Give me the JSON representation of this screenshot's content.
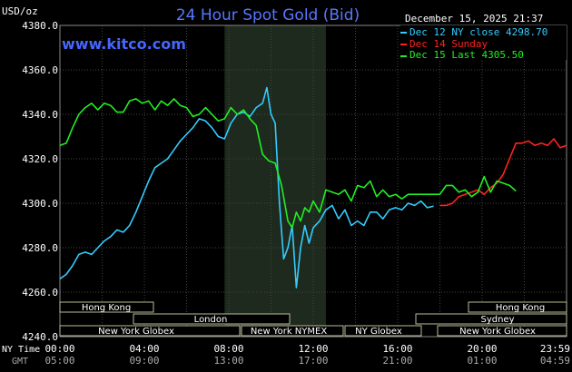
{
  "header": {
    "title": "24 Hour Spot Gold (Bid)",
    "currency_label": "USD/oz",
    "datetime": "December 15, 2025 21:37",
    "watermark": "www.kitco.com"
  },
  "legend": [
    {
      "label": "Dec 12 NY close 4298.70",
      "color": "#33ccff"
    },
    {
      "label": "Dec 14 Sunday",
      "color": "#ff2222"
    },
    {
      "label": "Dec 15 Last 4305.50",
      "color": "#22ee22"
    }
  ],
  "markets": [
    {
      "name": "Hong Kong",
      "row": 0
    },
    {
      "name": "Hong Kong",
      "row": 0
    },
    {
      "name": "London",
      "row": 1
    },
    {
      "name": "Sydney",
      "row": 1
    },
    {
      "name": "New York Globex",
      "row": 2
    },
    {
      "name": "New York NYMEX",
      "row": 2
    },
    {
      "name": "NY Globex",
      "row": 2
    },
    {
      "name": "New York Globex",
      "row": 2
    }
  ],
  "time_rows": {
    "ny_label": "NY Time",
    "gmt_label": "GMT",
    "ny_ticks": [
      "00:00",
      "04:00",
      "08:00",
      "12:00",
      "16:00",
      "20:00",
      "23:59"
    ],
    "gmt_ticks": [
      "05:00",
      "09:00",
      "13:00",
      "17:00",
      "21:00",
      "01:00",
      "04:59"
    ]
  },
  "chart_data": {
    "type": "line",
    "title": "24 Hour Spot Gold (Bid)",
    "ylabel": "USD/oz",
    "ylim": [
      4240,
      4380
    ],
    "yticks": [
      "4240.0",
      "4260.0",
      "4280.0",
      "4300.0",
      "4320.0",
      "4340.0",
      "4360.0",
      "4380.0"
    ],
    "xlim": [
      0,
      24
    ],
    "grid": true,
    "highlight_band_hours": [
      7.8,
      12.6
    ],
    "series": [
      {
        "name": "Dec 12 NY close 4298.70",
        "color": "#33ccff",
        "x": [
          0.0,
          0.3,
          0.6,
          0.9,
          1.2,
          1.5,
          1.8,
          2.1,
          2.4,
          2.7,
          3.0,
          3.3,
          3.6,
          3.9,
          4.2,
          4.5,
          4.8,
          5.1,
          5.4,
          5.7,
          6.0,
          6.3,
          6.6,
          6.9,
          7.2,
          7.5,
          7.8,
          8.1,
          8.4,
          8.7,
          9.0,
          9.3,
          9.6,
          9.8,
          10.0,
          10.2,
          10.4,
          10.6,
          10.8,
          11.0,
          11.2,
          11.4,
          11.6,
          11.8,
          12.0,
          12.3,
          12.6,
          12.9,
          13.2,
          13.5,
          13.8,
          14.1,
          14.4,
          14.7,
          15.0,
          15.3,
          15.6,
          15.9,
          16.2,
          16.5,
          16.8,
          17.1,
          17.4,
          17.7
        ],
        "values": [
          4266,
          4268,
          4272,
          4277,
          4278,
          4277,
          4280,
          4283,
          4285,
          4288,
          4287,
          4290,
          4296,
          4303,
          4310,
          4316,
          4318,
          4320,
          4324,
          4328,
          4331,
          4334,
          4338,
          4337,
          4334,
          4330,
          4329,
          4336,
          4340,
          4341,
          4339,
          4343,
          4345,
          4352,
          4340,
          4336,
          4300,
          4275,
          4280,
          4290,
          4262,
          4280,
          4290,
          4282,
          4289,
          4292,
          4297,
          4299,
          4293,
          4297,
          4290,
          4292,
          4290,
          4296,
          4296,
          4293,
          4297,
          4298,
          4297,
          4300,
          4299,
          4301,
          4298,
          4298.7
        ]
      },
      {
        "name": "Dec 14 Sunday",
        "color": "#ff2222",
        "x": [
          18.0,
          18.3,
          18.6,
          18.9,
          19.2,
          19.5,
          19.8,
          20.1,
          20.4,
          20.7,
          21.0,
          21.3,
          21.6,
          21.9,
          22.2,
          22.5,
          22.8,
          23.1,
          23.4,
          23.7,
          23.99
        ],
        "values": [
          4299,
          4299,
          4300,
          4303,
          4304,
          4305,
          4306,
          4304,
          4307,
          4309,
          4313,
          4320,
          4327,
          4327,
          4328,
          4326,
          4327,
          4326,
          4329,
          4325,
          4326
        ]
      },
      {
        "name": "Dec 15 Last 4305.50",
        "color": "#22ee22",
        "x": [
          0.0,
          0.3,
          0.6,
          0.9,
          1.2,
          1.5,
          1.8,
          2.1,
          2.4,
          2.7,
          3.0,
          3.3,
          3.6,
          3.9,
          4.2,
          4.5,
          4.8,
          5.1,
          5.4,
          5.7,
          6.0,
          6.3,
          6.6,
          6.9,
          7.2,
          7.5,
          7.8,
          8.1,
          8.4,
          8.7,
          9.0,
          9.3,
          9.6,
          9.9,
          10.2,
          10.5,
          10.8,
          11.0,
          11.2,
          11.4,
          11.6,
          11.8,
          12.0,
          12.3,
          12.6,
          12.9,
          13.2,
          13.5,
          13.8,
          14.1,
          14.4,
          14.7,
          15.0,
          15.3,
          15.6,
          15.9,
          16.2,
          16.5,
          16.8,
          17.1,
          17.4,
          17.7,
          18.0,
          18.3,
          18.6,
          18.9,
          19.2,
          19.5,
          19.8,
          20.1,
          20.4,
          20.7,
          21.0,
          21.3,
          21.6
        ],
        "values": [
          4326,
          4327,
          4334,
          4340,
          4343,
          4345,
          4342,
          4345,
          4344,
          4341,
          4341,
          4346,
          4347,
          4345,
          4346,
          4342,
          4346,
          4344,
          4347,
          4344,
          4343,
          4339,
          4340,
          4343,
          4340,
          4337,
          4338,
          4343,
          4340,
          4342,
          4338,
          4335,
          4322,
          4319,
          4318,
          4308,
          4292,
          4289,
          4296,
          4292,
          4298,
          4296,
          4301,
          4296,
          4306,
          4305,
          4304,
          4306,
          4301,
          4308,
          4307,
          4310,
          4303,
          4306,
          4303,
          4304,
          4302,
          4304,
          4304,
          4304,
          4304,
          4304,
          4304,
          4308,
          4308,
          4305,
          4306,
          4303,
          4305,
          4312,
          4305,
          4310,
          4309,
          4308,
          4305.5
        ]
      }
    ]
  }
}
